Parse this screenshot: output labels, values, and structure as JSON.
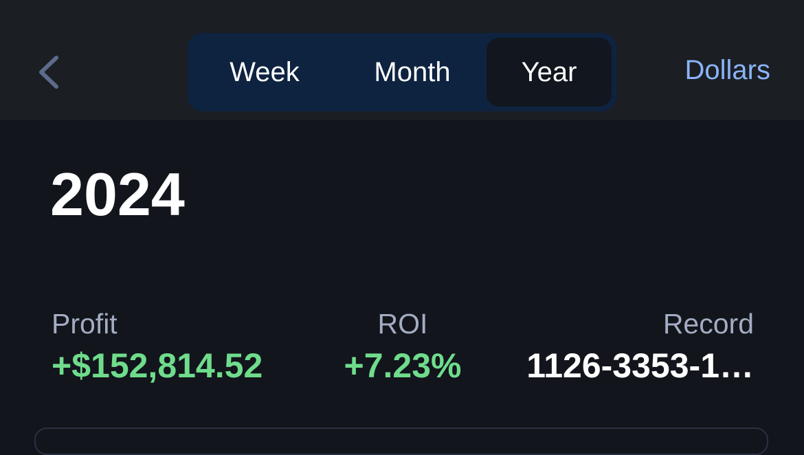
{
  "nav": {
    "segments": [
      "Week",
      "Month",
      "Year"
    ],
    "selected_index": 2,
    "unit_button": "Dollars"
  },
  "title": "2024",
  "stats": [
    {
      "label": "Profit",
      "value": "+$152,814.52"
    },
    {
      "label": "ROI",
      "value": "+7.23%"
    },
    {
      "label": "Record",
      "value": "1126-3353-1…"
    }
  ]
}
